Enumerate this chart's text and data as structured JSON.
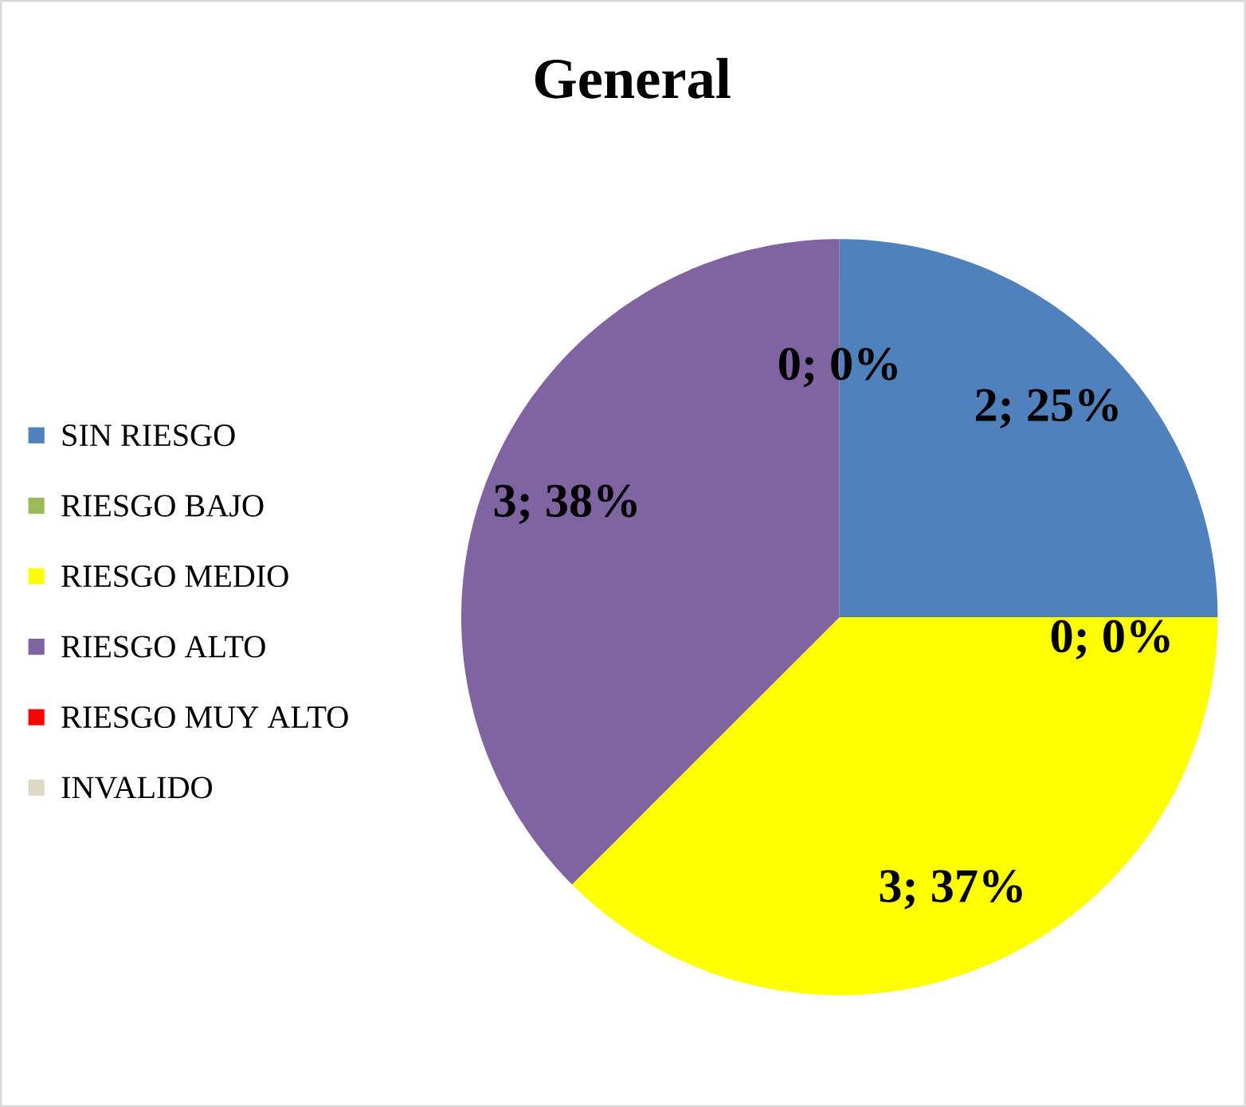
{
  "chart_data": {
    "type": "pie",
    "title": "General",
    "categories": [
      "SIN RIESGO",
      "RIESGO BAJO",
      "RIESGO MEDIO",
      "RIESGO ALTO",
      "RIESGO MUY ALTO",
      "INVALIDO"
    ],
    "values": [
      2,
      0,
      3,
      3,
      0,
      0
    ],
    "colors": [
      "#4f81bd",
      "#9bbb59",
      "#ffff00",
      "#8064a2",
      "#ff0000",
      "#ddd9c3"
    ],
    "value_labels": [
      "2; 25%",
      "0; 0%",
      "3; 37%",
      "3; 38%",
      "0; 0%",
      null
    ],
    "legend": "left"
  }
}
